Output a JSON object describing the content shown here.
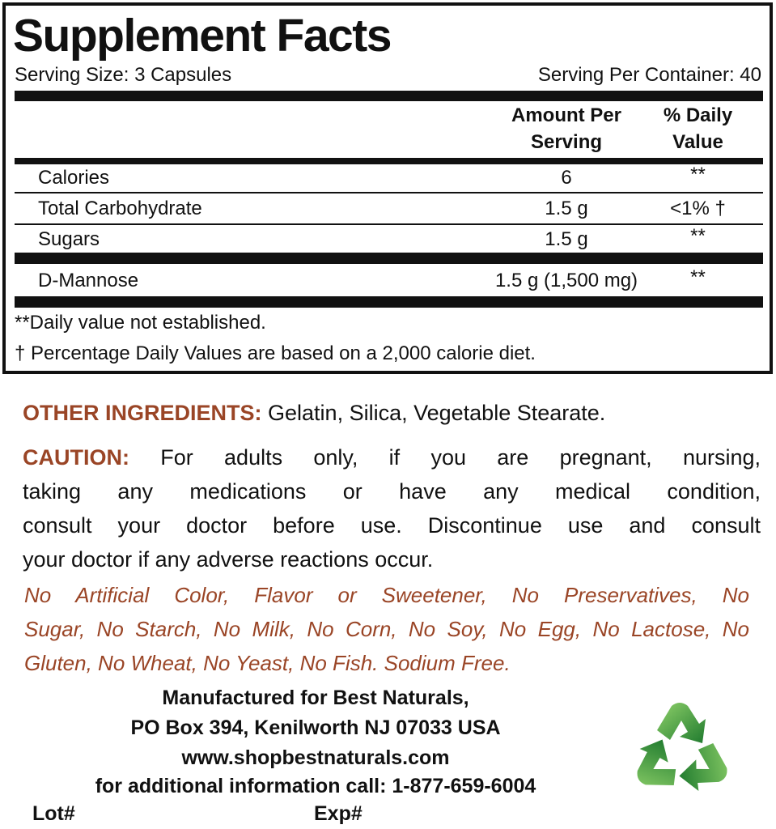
{
  "facts": {
    "title": "Supplement Facts",
    "serving_size": "Serving Size: 3 Capsules",
    "servings_per_container": "Serving Per Container: 40",
    "col_amount_line1": "Amount Per",
    "col_amount_line2": "Serving",
    "col_dv_line1": "% Daily",
    "col_dv_line2": "Value",
    "rows": [
      {
        "label": "Calories",
        "amount": "6",
        "dv": "**"
      },
      {
        "label": "Total Carbohydrate",
        "amount": "1.5 g",
        "dv": "<1% †"
      },
      {
        "label": "Sugars",
        "amount": "1.5 g",
        "dv": "**"
      },
      {
        "label": "D-Mannose",
        "amount": "1.5 g (1,500 mg)",
        "dv": "**"
      }
    ],
    "footnotes": [
      "**Daily value not established.",
      "† Percentage Daily Values are based on a 2,000 calorie diet."
    ]
  },
  "other_ingredients": {
    "heading": "OTHER INGREDIENTS:",
    "text": " Gelatin, Silica, Vegetable Stearate."
  },
  "caution": {
    "heading": "CAUTION:",
    "lines": [
      " For adults only, if you are pregnant, nursing,",
      "taking any medications or have any medical condition,",
      "consult your doctor before use. Discontinue use and consult",
      "your doctor if any adverse reactions occur."
    ]
  },
  "free_from": {
    "lines": [
      "No Artificial Color, Flavor or Sweetener, No Preservatives, No",
      "Sugar, No Starch, No Milk, No Corn, No Soy, No Egg, No Lactose, No",
      "Gluten, No Wheat, No Yeast, No Fish. Sodium Free."
    ]
  },
  "manufacturer": {
    "lines": [
      "Manufactured for Best Naturals,",
      "PO Box 394, Kenilworth NJ 07033 USA",
      "www.shopbestnaturals.com",
      "for additional information call: 1-877-659-6004"
    ]
  },
  "lot_label": "Lot#",
  "exp_label": "Exp#",
  "icons": {
    "recycle": "recycle-icon"
  },
  "colors": {
    "accent": "#9a4526",
    "recycle_green": "#3a9a3a",
    "text": "#111111"
  }
}
